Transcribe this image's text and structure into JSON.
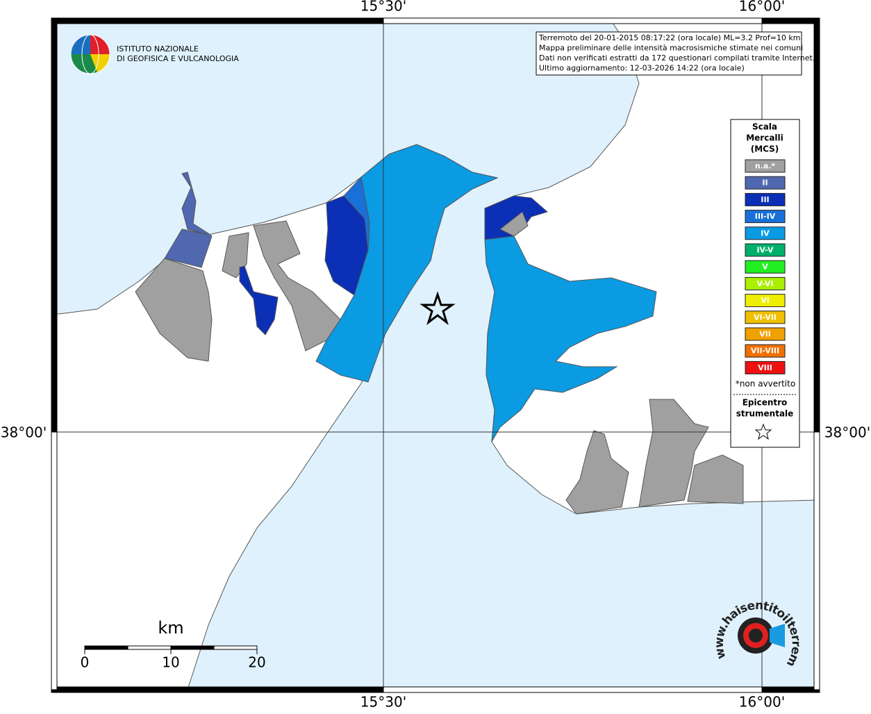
{
  "coords": {
    "lon1": "15°30'",
    "lon2": "16°00'",
    "lat1": "38°00'"
  },
  "info": [
    "Terremoto del 20-01-2015 08:17:22 (ora locale) ML=3.2 Prof=10 km",
    "Mappa preliminare delle intensità macrosismiche stimate nei comuni",
    "Dati non verificati estratti da 172 questionari compilati tramite Internet.",
    "Ultimo aggiornamento: 12-03-2026 14:22 (ora locale)"
  ],
  "legend": {
    "title": [
      "Scala",
      "Mercalli",
      "(MCS)"
    ],
    "items": [
      {
        "label": "n.a.*",
        "color": "#a0a0a0"
      },
      {
        "label": "II",
        "color": "#5068b0"
      },
      {
        "label": "III",
        "color": "#0b2fb5"
      },
      {
        "label": "III-IV",
        "color": "#1870d8"
      },
      {
        "label": "IV",
        "color": "#0a9be3"
      },
      {
        "label": "IV-V",
        "color": "#00b06a"
      },
      {
        "label": "V",
        "color": "#22ee22"
      },
      {
        "label": "V-VI",
        "color": "#aaee00"
      },
      {
        "label": "VI",
        "color": "#eeee00"
      },
      {
        "label": "VI-VII",
        "color": "#f0c000"
      },
      {
        "label": "VII",
        "color": "#f0a000"
      },
      {
        "label": "VII-VIII",
        "color": "#f07000"
      },
      {
        "label": "VIII",
        "color": "#ee1111"
      }
    ],
    "note": "*non avvertito",
    "epicenter": [
      "Epicentro",
      "strumentale"
    ]
  },
  "scale": {
    "unit": "km",
    "ticks": [
      0,
      10,
      20
    ]
  },
  "logo": {
    "ingv": [
      "ISTITUTO NAZIONALE",
      "DI GEOFISICA E VULCANOLOGIA"
    ],
    "site": "www.haisentitoilterremoto.it"
  }
}
